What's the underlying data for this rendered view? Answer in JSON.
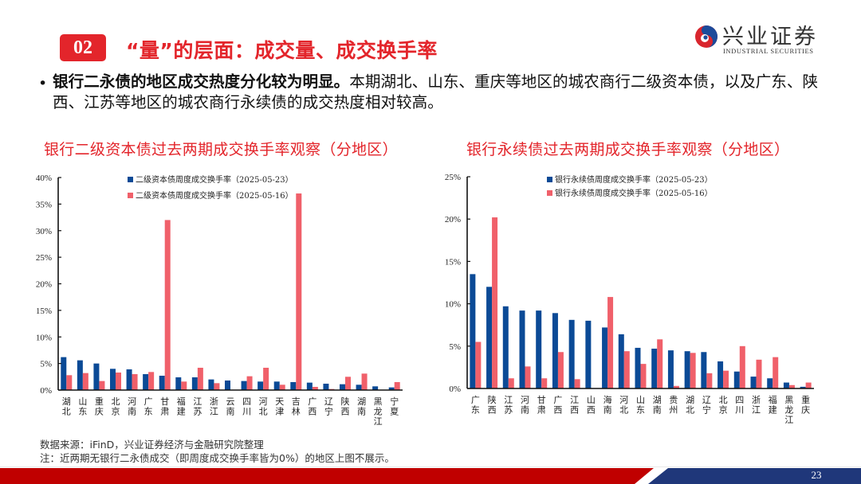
{
  "header": {
    "badge": "02",
    "title": "“量”的层面：成交量、成交换手率"
  },
  "logo": {
    "cn": "兴业证券",
    "en": "INDUSTRIAL SECURITIES"
  },
  "body": {
    "bullet_symbol": "•",
    "bullet_bold": "银行二永债的地区成交热度分化较为明显。",
    "bullet_text": "本期湖北、山东、重庆等地区的城农商行二级资本债，以及广东、陕西、江苏等地区的城农商行永续债的成交热度相对较高。"
  },
  "notes": {
    "source": "数据来源：iFinD，兴业证券经济与金融研究院整理",
    "remark": "注：近两期无银行二永债成交（即周度成交换手率皆为0%）的地区上图不展示。"
  },
  "page_number": "23",
  "colors": {
    "accent_red": "#e3252b",
    "series_blue": "#0b4a96",
    "series_red": "#f0606a",
    "footer_red": "#c00000",
    "footer_blue": "#1f377a"
  },
  "chart_titles": {
    "left": "银行二级资本债过去两期成交换手率观察（分地区）",
    "right": "银行永续债过去两期成交换手率观察（分地区）"
  },
  "chart_data": [
    {
      "type": "bar",
      "title": "银行二级资本债过去两期成交换手率观察（分地区）",
      "xlabel": "",
      "ylabel": "",
      "ylim": [
        0,
        40
      ],
      "yticks": [
        0,
        5,
        10,
        15,
        20,
        25,
        30,
        35,
        40
      ],
      "ytick_labels": [
        "0%",
        "5%",
        "10%",
        "15%",
        "20%",
        "25%",
        "30%",
        "35%",
        "40%"
      ],
      "grid": false,
      "legend_position": "top-center",
      "categories": [
        "湖北",
        "山东",
        "重庆",
        "北京",
        "河南",
        "广东",
        "甘肃",
        "福建",
        "江苏",
        "浙江",
        "云南",
        "四川",
        "河北",
        "天津",
        "吉林",
        "广西",
        "辽宁",
        "陕西",
        "湖南",
        "黑龙江",
        "宁夏"
      ],
      "series": [
        {
          "name": "二级资本债周度成交换手率（2025-05-23）",
          "color": "#0b4a96",
          "values": [
            6.2,
            5.6,
            5.0,
            4.0,
            3.9,
            3.0,
            2.7,
            2.4,
            2.4,
            2.0,
            1.8,
            1.7,
            1.6,
            1.6,
            1.5,
            1.4,
            1.2,
            1.1,
            1.0,
            0.7,
            0.5
          ]
        },
        {
          "name": "二级资本债周度成交换手率（2025-05-16）",
          "color": "#f0606a",
          "values": [
            2.8,
            3.2,
            1.7,
            3.3,
            3.0,
            3.4,
            32.0,
            1.6,
            4.2,
            1.3,
            0,
            2.6,
            4.2,
            1.0,
            37.0,
            0.6,
            0.2,
            2.5,
            3.1,
            0,
            1.5
          ]
        }
      ]
    },
    {
      "type": "bar",
      "title": "银行永续债过去两期成交换手率观察（分地区）",
      "xlabel": "",
      "ylabel": "",
      "ylim": [
        0,
        25
      ],
      "yticks": [
        0,
        5,
        10,
        15,
        20,
        25
      ],
      "ytick_labels": [
        "0%",
        "5%",
        "10%",
        "15%",
        "20%",
        "25%"
      ],
      "grid": false,
      "legend_position": "top-center",
      "categories": [
        "广东",
        "陕西",
        "江苏",
        "河南",
        "甘肃",
        "广西",
        "江西",
        "山西",
        "海南",
        "河北",
        "山东",
        "湖南",
        "贵州",
        "湖北",
        "辽宁",
        "北京",
        "四川",
        "浙江",
        "福建",
        "黑龙江",
        "重庆"
      ],
      "series": [
        {
          "name": "银行永续债周度成交换手率（2025-05-23）",
          "color": "#0b4a96",
          "values": [
            13.5,
            12.0,
            9.7,
            9.2,
            9.2,
            8.9,
            8.1,
            8.0,
            7.2,
            6.4,
            4.8,
            4.7,
            4.5,
            4.4,
            4.3,
            3.2,
            2.0,
            1.4,
            1.2,
            0.7,
            0.2
          ]
        },
        {
          "name": "银行永续债周度成交换手率（2025-05-16）",
          "color": "#f0606a",
          "values": [
            5.5,
            20.2,
            1.2,
            2.6,
            1.2,
            4.3,
            1.1,
            0,
            10.8,
            4.4,
            2.9,
            5.8,
            0.3,
            4.2,
            1.8,
            2.1,
            5.0,
            3.4,
            3.7,
            0.4,
            0.7
          ]
        }
      ]
    }
  ]
}
